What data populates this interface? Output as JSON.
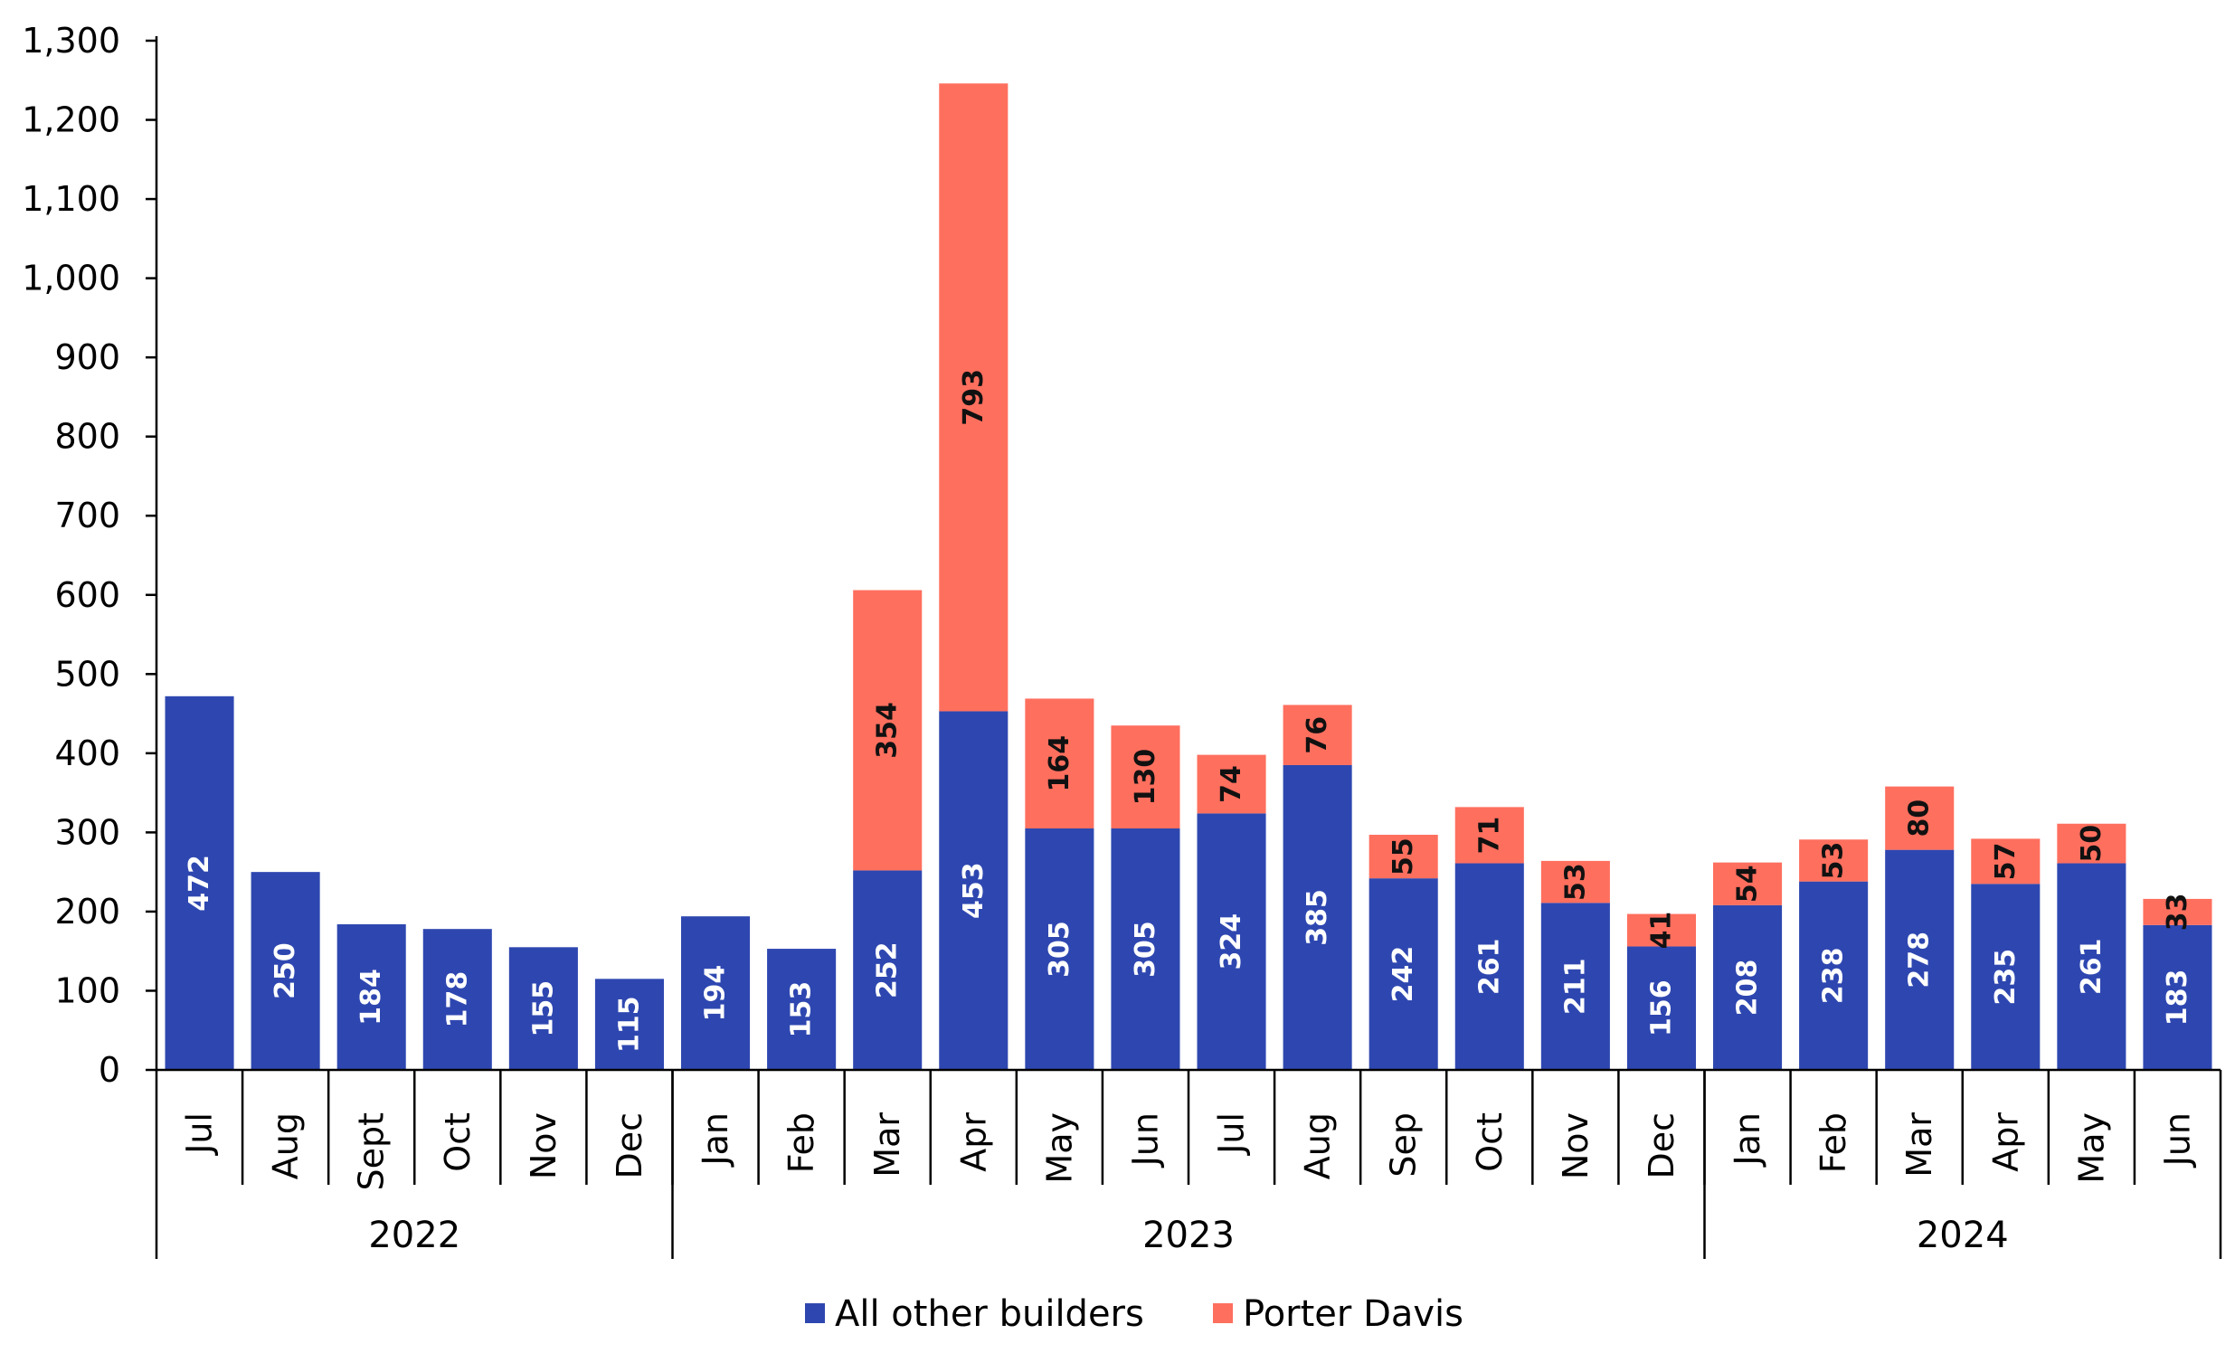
{
  "chart_data": {
    "type": "bar",
    "stacked": true,
    "ylim": [
      0,
      1300
    ],
    "yticks": [
      0,
      100,
      200,
      300,
      400,
      500,
      600,
      700,
      800,
      900,
      1000,
      1100,
      1200,
      1300
    ],
    "ytick_labels": [
      "0",
      "100",
      "200",
      "300",
      "400",
      "500",
      "600",
      "700",
      "800",
      "900",
      "1,000",
      "1,100",
      "1,200",
      "1,300"
    ],
    "categories": [
      "Jul",
      "Aug",
      "Sept",
      "Oct",
      "Nov",
      "Dec",
      "Jan",
      "Feb",
      "Mar",
      "Apr",
      "May",
      "Jun",
      "Jul",
      "Aug",
      "Sep",
      "Oct",
      "Nov",
      "Dec",
      "Jan",
      "Feb",
      "Mar",
      "Apr",
      "May",
      "Jun"
    ],
    "years": [
      {
        "label": "2022",
        "start": 0,
        "end": 5
      },
      {
        "label": "2023",
        "start": 6,
        "end": 17
      },
      {
        "label": "2024",
        "start": 18,
        "end": 23
      }
    ],
    "series": [
      {
        "name": "All other builders",
        "color": "#2E47B0",
        "label_color": "#ffffff",
        "values": [
          472,
          250,
          184,
          178,
          155,
          115,
          194,
          153,
          252,
          453,
          305,
          305,
          324,
          385,
          242,
          261,
          211,
          156,
          208,
          238,
          278,
          235,
          261,
          183
        ]
      },
      {
        "name": "Porter Davis",
        "color": "#FF6F5E",
        "label_color": "#111111",
        "values": [
          0,
          0,
          0,
          0,
          0,
          0,
          0,
          0,
          354,
          793,
          164,
          130,
          74,
          76,
          55,
          71,
          53,
          41,
          54,
          53,
          80,
          57,
          50,
          33
        ]
      }
    ],
    "legend_position": "bottom-center"
  }
}
